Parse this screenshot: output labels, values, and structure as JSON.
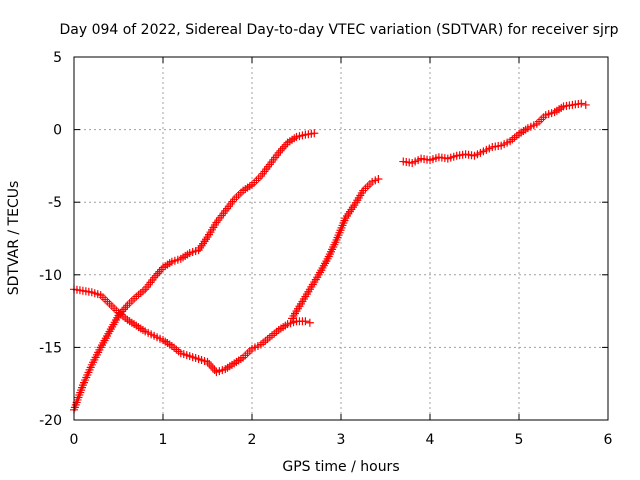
{
  "chart_data": {
    "type": "scatter",
    "title": "Day 094 of 2022, Sidereal Day-to-day VTEC variation (SDTVAR) for receiver sjrp",
    "xlabel": "GPS time / hours",
    "ylabel": "SDTVAR / TECUs",
    "xlim": [
      0,
      6
    ],
    "ylim": [
      -20,
      5
    ],
    "xticks": [
      0,
      1,
      2,
      3,
      4,
      5,
      6
    ],
    "yticks": [
      -20,
      -15,
      -10,
      -5,
      0,
      5
    ],
    "grid": true,
    "marker": "plus",
    "color": "#ff0000",
    "series": [
      {
        "x": [
          0.0,
          0.1,
          0.2,
          0.3,
          0.4,
          0.5,
          0.6,
          0.7,
          0.8,
          0.9,
          1.0,
          1.1,
          1.2,
          1.3,
          1.4,
          1.5,
          1.6,
          1.7,
          1.8,
          1.9,
          2.0,
          2.1,
          2.2,
          2.3,
          2.4,
          2.5,
          2.6,
          2.65
        ],
        "y": [
          -11.0,
          -11.1,
          -11.2,
          -11.4,
          -12.0,
          -12.6,
          -13.1,
          -13.5,
          -13.9,
          -14.2,
          -14.5,
          -14.9,
          -15.4,
          -15.6,
          -15.8,
          -16.0,
          -16.7,
          -16.5,
          -16.1,
          -15.7,
          -15.1,
          -14.8,
          -14.3,
          -13.8,
          -13.4,
          -13.2,
          -13.2,
          -13.3
        ]
      },
      {
        "x": [
          0.0,
          0.1,
          0.2,
          0.3,
          0.4,
          0.5,
          0.6,
          0.7,
          0.8,
          0.9,
          1.0,
          1.1,
          1.2,
          1.3,
          1.4,
          1.5,
          1.6,
          1.7,
          1.8,
          1.9,
          2.0,
          2.1,
          2.2,
          2.3,
          2.4,
          2.5,
          2.6,
          2.7
        ],
        "y": [
          -19.3,
          -17.6,
          -16.2,
          -15.0,
          -13.9,
          -12.8,
          -12.1,
          -11.5,
          -11.0,
          -10.2,
          -9.5,
          -9.1,
          -8.9,
          -8.5,
          -8.3,
          -7.4,
          -6.4,
          -5.6,
          -4.8,
          -4.2,
          -3.8,
          -3.2,
          -2.4,
          -1.6,
          -0.9,
          -0.5,
          -0.35,
          -0.25
        ]
      },
      {
        "x": [
          2.45,
          2.55,
          2.65,
          2.75,
          2.85,
          2.95,
          3.05,
          3.15,
          3.25,
          3.35,
          3.42
        ],
        "y": [
          -13.0,
          -12.0,
          -11.0,
          -10.0,
          -8.9,
          -7.6,
          -6.1,
          -5.2,
          -4.2,
          -3.6,
          -3.4
        ]
      },
      {
        "x": [
          3.7,
          3.8,
          3.9,
          4.0,
          4.1,
          4.2,
          4.3,
          4.4,
          4.5,
          4.6,
          4.7,
          4.8,
          4.9,
          5.0,
          5.1,
          5.2,
          5.3,
          5.4,
          5.5,
          5.6,
          5.7,
          5.75
        ],
        "y": [
          -2.2,
          -2.3,
          -2.0,
          -2.1,
          -1.9,
          -2.0,
          -1.8,
          -1.7,
          -1.8,
          -1.5,
          -1.2,
          -1.1,
          -0.8,
          -0.3,
          0.1,
          0.4,
          1.0,
          1.2,
          1.6,
          1.7,
          1.8,
          1.7
        ]
      }
    ]
  }
}
